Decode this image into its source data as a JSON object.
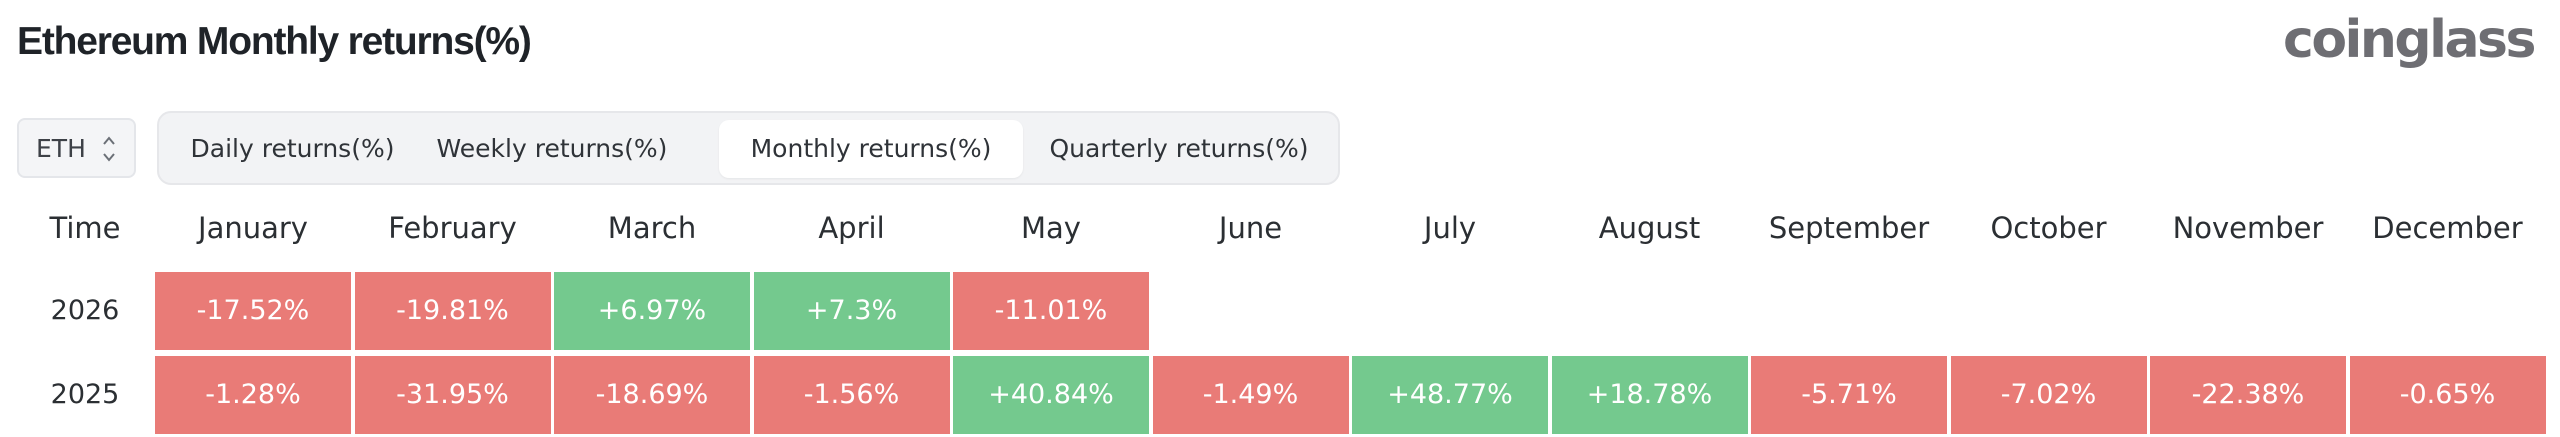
{
  "page": {
    "title": "Ethereum Monthly returns(%)"
  },
  "brand": {
    "logo_text": "coinglass"
  },
  "coin_select": {
    "value": "ETH"
  },
  "tabs": [
    {
      "label": "Daily returns(%)",
      "active": false
    },
    {
      "label": "Weekly returns(%)",
      "active": false
    },
    {
      "label": "Monthly returns(%)",
      "active": true
    },
    {
      "label": "Quarterly returns(%)",
      "active": false
    }
  ],
  "table": {
    "time_header": "Time",
    "months": [
      "January",
      "February",
      "March",
      "April",
      "May",
      "June",
      "July",
      "August",
      "September",
      "October",
      "November",
      "December"
    ],
    "rows": [
      {
        "year": "2026",
        "cells": [
          "-17.52%",
          "-19.81%",
          "+6.97%",
          "+7.3%",
          "-11.01%",
          "",
          "",
          "",
          "",
          "",
          "",
          ""
        ]
      },
      {
        "year": "2025",
        "cells": [
          "-1.28%",
          "-31.95%",
          "-18.69%",
          "-1.56%",
          "+40.84%",
          "-1.49%",
          "+48.77%",
          "+18.78%",
          "-5.71%",
          "-7.02%",
          "-22.38%",
          "-0.65%"
        ]
      }
    ]
  },
  "colors": {
    "positive": "#74c98e",
    "negative": "#e97b77",
    "logo": "#6e6e73"
  }
}
